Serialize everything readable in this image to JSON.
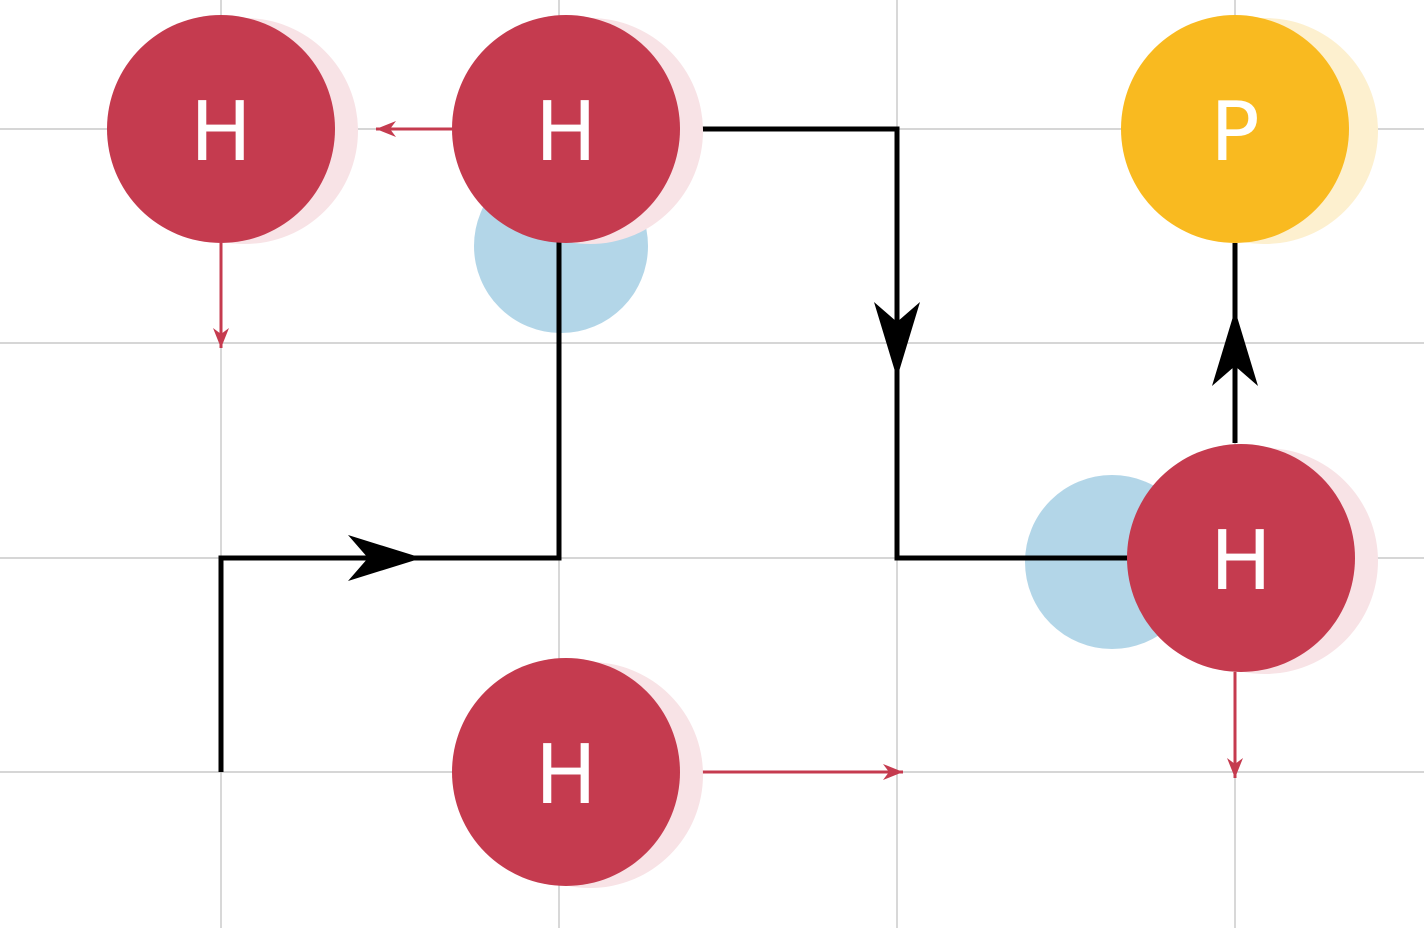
{
  "colors": {
    "background": "#ffffff",
    "grid": "#bdbdbd",
    "h_atom": "#c53b4f",
    "h_shadow": "#f8e3e6",
    "p_atom": "#f9ba20",
    "p_shadow": "#fdf0cf",
    "ghost": "#b3d6e8",
    "path": "#000000"
  },
  "atoms": [
    {
      "id": "h1",
      "label": "H",
      "type": "H"
    },
    {
      "id": "h2",
      "label": "H",
      "type": "H"
    },
    {
      "id": "p1",
      "label": "P",
      "type": "P"
    },
    {
      "id": "h3",
      "label": "H",
      "type": "H"
    },
    {
      "id": "h4",
      "label": "H",
      "type": "H"
    }
  ]
}
